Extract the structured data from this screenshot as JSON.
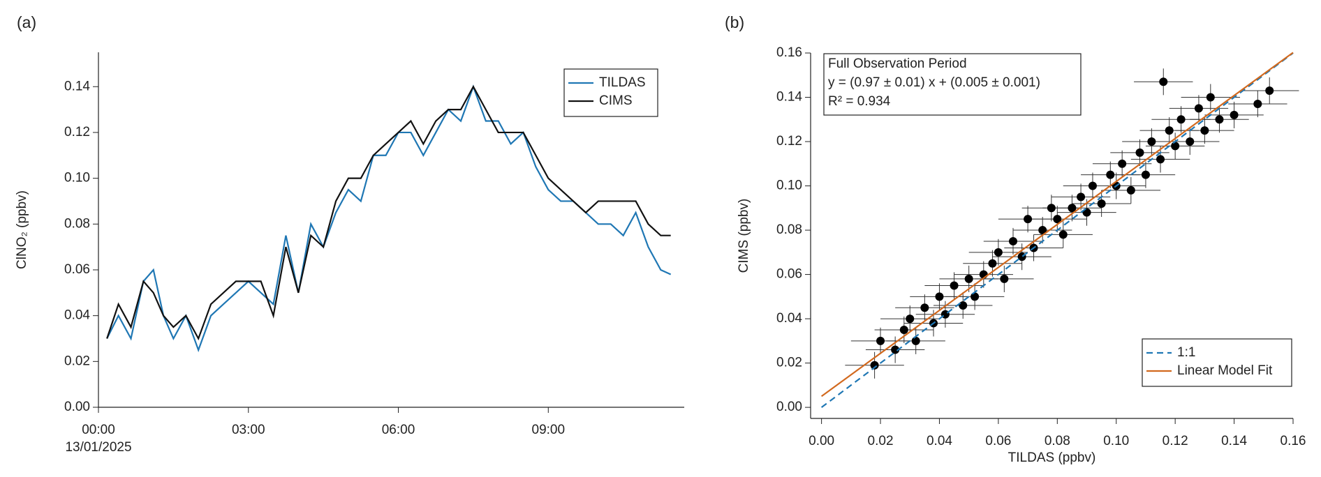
{
  "chart_data": [
    {
      "type": "line",
      "panel_label": "(a)",
      "y_label": "ClNO₂ (ppbv)",
      "x": [
        0.17,
        0.4,
        0.65,
        0.9,
        1.1,
        1.3,
        1.5,
        1.75,
        2.0,
        2.25,
        2.5,
        2.75,
        3.0,
        3.25,
        3.5,
        3.75,
        4.0,
        4.25,
        4.5,
        4.75,
        5.0,
        5.25,
        5.5,
        5.75,
        6.0,
        6.25,
        6.5,
        6.75,
        7.0,
        7.25,
        7.5,
        7.75,
        8.0,
        8.25,
        8.5,
        8.75,
        9.0,
        9.25,
        9.5,
        9.75,
        10.0,
        10.25,
        10.5,
        10.75,
        11.0,
        11.25,
        11.45
      ],
      "series": [
        {
          "name": "TILDAS",
          "color": "#1f77b4",
          "values": [
            0.03,
            0.04,
            0.03,
            0.055,
            0.06,
            0.04,
            0.03,
            0.04,
            0.025,
            0.04,
            0.045,
            0.05,
            0.055,
            0.05,
            0.045,
            0.075,
            0.05,
            0.08,
            0.07,
            0.085,
            0.095,
            0.09,
            0.11,
            0.11,
            0.12,
            0.12,
            0.11,
            0.12,
            0.13,
            0.125,
            0.14,
            0.125,
            0.125,
            0.115,
            0.12,
            0.105,
            0.095,
            0.09,
            0.09,
            0.085,
            0.08,
            0.08,
            0.075,
            0.085,
            0.07,
            0.06,
            0.058
          ]
        },
        {
          "name": "CIMS",
          "color": "#111111",
          "values": [
            0.03,
            0.045,
            0.035,
            0.055,
            0.05,
            0.04,
            0.035,
            0.04,
            0.03,
            0.045,
            0.05,
            0.055,
            0.055,
            0.055,
            0.04,
            0.07,
            0.05,
            0.075,
            0.07,
            0.09,
            0.1,
            0.1,
            0.11,
            0.115,
            0.12,
            0.125,
            0.115,
            0.125,
            0.13,
            0.13,
            0.14,
            0.13,
            0.12,
            0.12,
            0.12,
            0.11,
            0.1,
            0.095,
            0.09,
            0.085,
            0.09,
            0.09,
            0.09,
            0.09,
            0.08,
            0.075,
            0.075
          ]
        }
      ],
      "xlim": [
        0,
        11.72
      ],
      "xticks": [
        {
          "value": 0,
          "label": "00:00"
        },
        {
          "value": 3,
          "label": "03:00"
        },
        {
          "value": 6,
          "label": "06:00"
        },
        {
          "value": 9,
          "label": "09:00"
        }
      ],
      "x_date_label": "13/01/2025",
      "ylim": [
        0,
        0.155
      ],
      "yticks": [
        {
          "value": 0,
          "label": "0.00"
        },
        {
          "value": 0.02,
          "label": "0.02"
        },
        {
          "value": 0.04,
          "label": "0.04"
        },
        {
          "value": 0.06,
          "label": "0.06"
        },
        {
          "value": 0.08,
          "label": "0.08"
        },
        {
          "value": 0.1,
          "label": "0.10"
        },
        {
          "value": 0.12,
          "label": "0.12"
        },
        {
          "value": 0.14,
          "label": "0.14"
        }
      ],
      "legend": "top-right"
    },
    {
      "type": "scatter",
      "panel_label": "(b)",
      "x_label": "TILDAS (ppbv)",
      "y_label": "CIMS (ppbv)",
      "annotation": [
        "Full Observation Period",
        "y = (0.97 ± 0.01) x + (0.005 ± 0.001)",
        "R² =  0.934"
      ],
      "points": {
        "color": "#000000",
        "x": [
          0.018,
          0.02,
          0.025,
          0.028,
          0.03,
          0.032,
          0.035,
          0.038,
          0.04,
          0.042,
          0.045,
          0.048,
          0.05,
          0.052,
          0.055,
          0.058,
          0.06,
          0.062,
          0.065,
          0.068,
          0.07,
          0.072,
          0.075,
          0.078,
          0.08,
          0.082,
          0.085,
          0.088,
          0.09,
          0.092,
          0.095,
          0.098,
          0.1,
          0.102,
          0.105,
          0.108,
          0.11,
          0.112,
          0.115,
          0.118,
          0.12,
          0.122,
          0.125,
          0.128,
          0.13,
          0.132,
          0.135,
          0.14,
          0.148,
          0.152,
          0.116
        ],
        "values": [
          0.019,
          0.03,
          0.026,
          0.035,
          0.04,
          0.03,
          0.045,
          0.038,
          0.05,
          0.042,
          0.055,
          0.046,
          0.058,
          0.05,
          0.06,
          0.065,
          0.07,
          0.058,
          0.075,
          0.068,
          0.085,
          0.072,
          0.08,
          0.09,
          0.085,
          0.078,
          0.09,
          0.095,
          0.088,
          0.1,
          0.092,
          0.105,
          0.1,
          0.11,
          0.098,
          0.115,
          0.105,
          0.12,
          0.112,
          0.125,
          0.118,
          0.13,
          0.12,
          0.135,
          0.125,
          0.14,
          0.13,
          0.132,
          0.137,
          0.143,
          0.147
        ],
        "xerr": 0.01,
        "yerr": 0.006
      },
      "series": [
        {
          "name": "1:1",
          "color": "#1f77b4",
          "dashed": true,
          "x": [
            0,
            0.16
          ],
          "values": [
            0,
            0.16
          ]
        },
        {
          "name": "Linear Model Fit",
          "color": "#d2691e",
          "dashed": false,
          "x": [
            0,
            0.16
          ],
          "values": [
            0.005,
            0.1602
          ]
        }
      ],
      "xlim": [
        -0.0037,
        0.16
      ],
      "xticks": [
        {
          "value": 0,
          "label": "0.00"
        },
        {
          "value": 0.02,
          "label": "0.02"
        },
        {
          "value": 0.04,
          "label": "0.04"
        },
        {
          "value": 0.06,
          "label": "0.06"
        },
        {
          "value": 0.08,
          "label": "0.08"
        },
        {
          "value": 0.1,
          "label": "0.10"
        },
        {
          "value": 0.12,
          "label": "0.12"
        },
        {
          "value": 0.14,
          "label": "0.14"
        },
        {
          "value": 0.16,
          "label": "0.16"
        }
      ],
      "ylim": [
        -0.005,
        0.16
      ],
      "yticks": [
        {
          "value": 0,
          "label": "0.00"
        },
        {
          "value": 0.02,
          "label": "0.02"
        },
        {
          "value": 0.04,
          "label": "0.04"
        },
        {
          "value": 0.06,
          "label": "0.06"
        },
        {
          "value": 0.08,
          "label": "0.08"
        },
        {
          "value": 0.1,
          "label": "0.10"
        },
        {
          "value": 0.12,
          "label": "0.12"
        },
        {
          "value": 0.14,
          "label": "0.14"
        },
        {
          "value": 0.16,
          "label": "0.16"
        }
      ],
      "legend": "bottom-right"
    }
  ]
}
